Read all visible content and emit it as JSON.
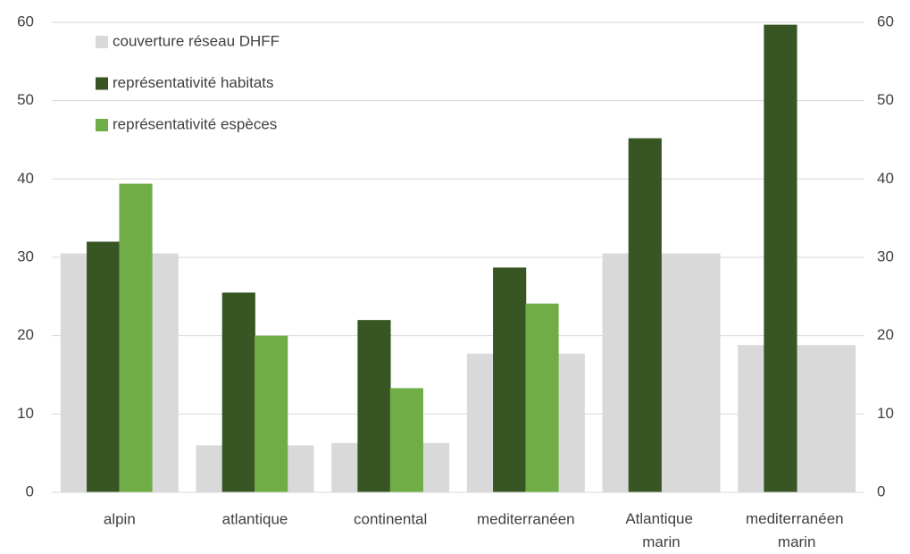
{
  "chart_data": {
    "type": "bar",
    "categories": [
      "alpin",
      "atlantique",
      "continental",
      "mediterranéen",
      "Atlantique marin",
      "mediterranéen marin"
    ],
    "series": [
      {
        "name": "couverture réseau DHFF",
        "color": "#d9d9d9",
        "values": [
          30.5,
          6.0,
          6.3,
          17.7,
          30.5,
          18.8
        ]
      },
      {
        "name": "représentativité habitats",
        "color": "#375623",
        "values": [
          32.0,
          25.5,
          22.0,
          28.7,
          45.2,
          59.7
        ]
      },
      {
        "name": "représentativité espèces",
        "color": "#70ad47",
        "values": [
          39.4,
          20.0,
          13.3,
          24.1,
          null,
          null
        ]
      }
    ],
    "ylim": [
      0,
      60
    ],
    "yticks": [
      0,
      10,
      20,
      30,
      40,
      50,
      60
    ],
    "y2lim": [
      0,
      60
    ],
    "y2ticks": [
      0,
      10,
      20,
      30,
      40,
      50,
      60
    ],
    "grid": true,
    "legend": "upper left"
  }
}
